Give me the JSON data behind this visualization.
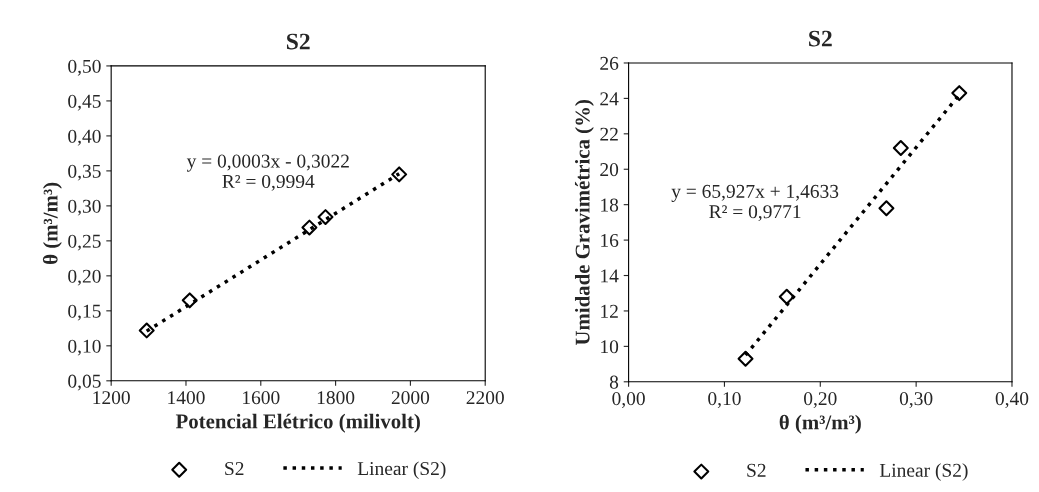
{
  "chart_data": [
    {
      "type": "scatter",
      "title": "S2",
      "xlabel": "Potencial Elétrico (milivolt)",
      "ylabel": "θ (m³/m³)",
      "series": [
        {
          "name": "S2",
          "color": "#000000",
          "marker": "diamond",
          "x": [
            1295,
            1410,
            1730,
            1773,
            1970
          ],
          "values": [
            0.122,
            0.165,
            0.269,
            0.284,
            0.345
          ]
        },
        {
          "name": "Linear (S2)",
          "type": "line",
          "color": "#000000",
          "line_style": "dotted",
          "x": [
            1295,
            1970
          ],
          "values": [
            0.121,
            0.346
          ]
        }
      ],
      "annotations": [
        "y = 0,0003x - 0,3022\nR² = 0,9994"
      ],
      "xlim": [
        1200,
        2200
      ],
      "xticks": [
        1200,
        1400,
        1600,
        1800,
        2000,
        2200
      ],
      "ylim": [
        0.05,
        0.5
      ],
      "yticks": [
        {
          "value": 0.05,
          "label": "0,05"
        },
        {
          "value": 0.1,
          "label": "0,10"
        },
        {
          "value": 0.15,
          "label": "0,15"
        },
        {
          "value": 0.2,
          "label": "0,20"
        },
        {
          "value": 0.25,
          "label": "0,25"
        },
        {
          "value": 0.3,
          "label": "0,30"
        },
        {
          "value": 0.35,
          "label": "0,35"
        },
        {
          "value": 0.4,
          "label": "0,40"
        },
        {
          "value": 0.45,
          "label": "0,45"
        },
        {
          "value": 0.5,
          "label": "0,50"
        }
      ],
      "legend": "bottom"
    },
    {
      "type": "scatter",
      "title": "S2",
      "xlabel": "θ (m³/m³)",
      "ylabel": "Umidade Gravimétrica (%)",
      "series": [
        {
          "name": "S2",
          "color": "#000000",
          "marker": "diamond",
          "x": [
            0.122,
            0.165,
            0.269,
            0.284,
            0.345
          ],
          "values": [
            9.3,
            12.8,
            17.8,
            21.2,
            24.3
          ]
        },
        {
          "name": "Linear (S2)",
          "type": "line",
          "color": "#000000",
          "line_style": "dotted",
          "x": [
            0.122,
            0.345
          ],
          "values": [
            9.5,
            24.2
          ]
        }
      ],
      "annotations": [
        "y = 65,927x + 1,4633\nR² = 0,9771"
      ],
      "xlim": [
        0,
        0.4
      ],
      "xticks": [
        {
          "value": 0,
          "label": "0,00"
        },
        {
          "value": 0.1,
          "label": "0,10"
        },
        {
          "value": 0.2,
          "label": "0,20"
        },
        {
          "value": 0.3,
          "label": "0,30"
        },
        {
          "value": 0.4,
          "label": "0,40"
        }
      ],
      "ylim": [
        8,
        26
      ],
      "yticks": [
        8,
        10,
        12,
        14,
        16,
        18,
        20,
        22,
        24,
        26
      ],
      "legend": "bottom"
    }
  ]
}
